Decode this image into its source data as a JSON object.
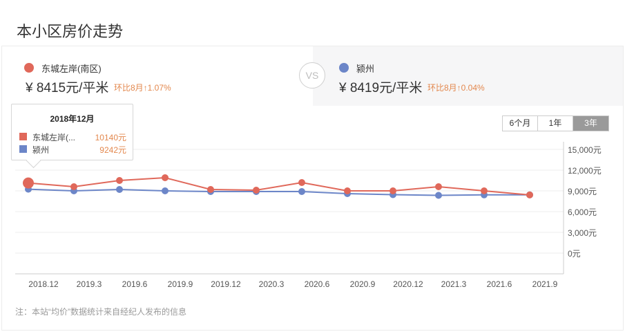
{
  "page_title": "本小区房价走势",
  "compare": {
    "left": {
      "name": "东城左岸(南区)",
      "price": "¥ 8415元/平米",
      "change": "环比8月↑1.07%",
      "color": "#e0685a"
    },
    "vs_label": "VS",
    "right": {
      "name": "颍州",
      "price": "¥ 8419元/平米",
      "change": "环比8月↑0.04%",
      "color": "#6c86c8"
    }
  },
  "range_tabs": [
    {
      "label": "6个月",
      "active": false
    },
    {
      "label": "1年",
      "active": false
    },
    {
      "label": "3年",
      "active": true
    }
  ],
  "tooltip": {
    "title": "2018年12月",
    "rows": [
      {
        "name": "东城左岸(...",
        "value": "10140元",
        "color": "#e0685a"
      },
      {
        "name": "颍州",
        "value": "9242元",
        "color": "#6c86c8"
      }
    ]
  },
  "note": "注：本站“均价”数据统计来自经纪人发布的信息",
  "chart_data": {
    "type": "line",
    "title": "本小区房价走势",
    "xlabel": "",
    "ylabel": "",
    "categories": [
      "2018.12",
      "2019.3",
      "2019.6",
      "2019.9",
      "2019.12",
      "2020.3",
      "2020.6",
      "2020.9",
      "2020.12",
      "2021.3",
      "2021.6",
      "2021.9"
    ],
    "series": [
      {
        "name": "东城左岸(南区)",
        "color": "#e0685a",
        "values": [
          10140,
          9600,
          10500,
          10900,
          9200,
          9100,
          10200,
          9000,
          9000,
          9600,
          9000,
          8415
        ]
      },
      {
        "name": "颍州",
        "color": "#6c86c8",
        "values": [
          9242,
          9000,
          9200,
          9000,
          8900,
          8900,
          8900,
          8600,
          8450,
          8350,
          8420,
          8419
        ]
      }
    ],
    "y_ticks": [
      "15,000元",
      "12,000元",
      "9,000元",
      "6,000元",
      "3,000元",
      "0元"
    ],
    "y_tick_values": [
      15000,
      12000,
      9000,
      6000,
      3000,
      0
    ],
    "ylim": [
      0,
      15000
    ],
    "grid": true,
    "y_axis_position": "right",
    "highlighted_index": 0
  }
}
